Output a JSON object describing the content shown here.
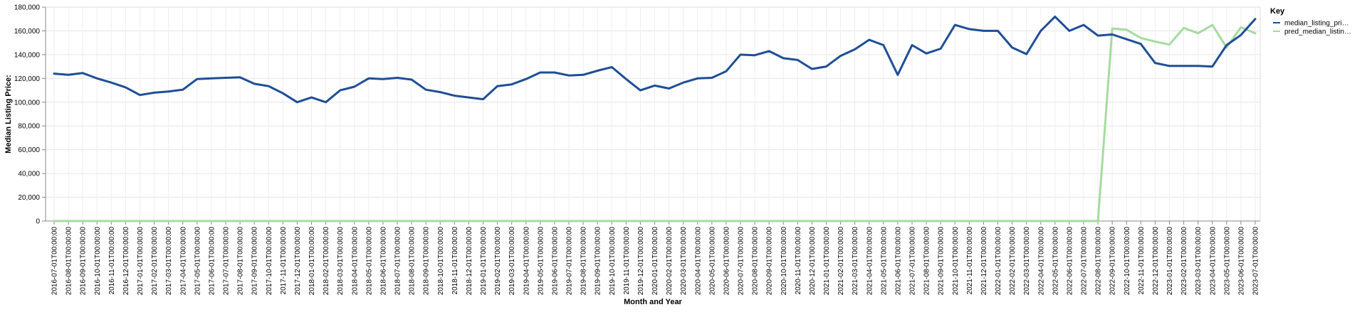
{
  "chart_data": {
    "type": "line",
    "xlabel": "Month and Year",
    "ylabel": "Median Listing Price:",
    "ylim": [
      0,
      180000
    ],
    "yticks": [
      "0",
      "20,000",
      "40,000",
      "60,000",
      "80,000",
      "100,000",
      "120,000",
      "140,000",
      "160,000",
      "180,000"
    ],
    "ytick_values": [
      0,
      20000,
      40000,
      60000,
      80000,
      100000,
      120000,
      140000,
      160000,
      180000
    ],
    "grid": true,
    "legend_position": "right",
    "legend_title": "Key",
    "x": [
      "2016-07-01T00:00:00",
      "2016-08-01T00:00:00",
      "2016-09-01T00:00:00",
      "2016-10-01T00:00:00",
      "2016-11-01T00:00:00",
      "2016-12-01T00:00:00",
      "2017-01-01T00:00:00",
      "2017-02-01T00:00:00",
      "2017-03-01T00:00:00",
      "2017-04-01T00:00:00",
      "2017-05-01T00:00:00",
      "2017-06-01T00:00:00",
      "2017-07-01T00:00:00",
      "2017-08-01T00:00:00",
      "2017-09-01T00:00:00",
      "2017-10-01T00:00:00",
      "2017-11-01T00:00:00",
      "2017-12-01T00:00:00",
      "2018-01-01T00:00:00",
      "2018-02-01T00:00:00",
      "2018-03-01T00:00:00",
      "2018-04-01T00:00:00",
      "2018-05-01T00:00:00",
      "2018-06-01T00:00:00",
      "2018-07-01T00:00:00",
      "2018-08-01T00:00:00",
      "2018-09-01T00:00:00",
      "2018-10-01T00:00:00",
      "2018-11-01T00:00:00",
      "2018-12-01T00:00:00",
      "2019-01-01T00:00:00",
      "2019-02-01T00:00:00",
      "2019-03-01T00:00:00",
      "2019-04-01T00:00:00",
      "2019-05-01T00:00:00",
      "2019-06-01T00:00:00",
      "2019-07-01T00:00:00",
      "2019-08-01T00:00:00",
      "2019-09-01T00:00:00",
      "2019-10-01T00:00:00",
      "2019-11-01T00:00:00",
      "2019-12-01T00:00:00",
      "2020-01-01T00:00:00",
      "2020-02-01T00:00:00",
      "2020-03-01T00:00:00",
      "2020-04-01T00:00:00",
      "2020-05-01T00:00:00",
      "2020-06-01T00:00:00",
      "2020-07-01T00:00:00",
      "2020-08-01T00:00:00",
      "2020-09-01T00:00:00",
      "2020-10-01T00:00:00",
      "2020-11-01T00:00:00",
      "2020-12-01T00:00:00",
      "2021-01-01T00:00:00",
      "2021-02-01T00:00:00",
      "2021-03-01T00:00:00",
      "2021-04-01T00:00:00",
      "2021-05-01T00:00:00",
      "2021-06-01T00:00:00",
      "2021-07-01T00:00:00",
      "2021-08-01T00:00:00",
      "2021-09-01T00:00:00",
      "2021-10-01T00:00:00",
      "2021-11-01T00:00:00",
      "2021-12-01T00:00:00",
      "2022-01-01T00:00:00",
      "2022-02-01T00:00:00",
      "2022-03-01T00:00:00",
      "2022-04-01T00:00:00",
      "2022-05-01T00:00:00",
      "2022-06-01T00:00:00",
      "2022-07-01T00:00:00",
      "2022-08-01T00:00:00",
      "2022-09-01T00:00:00",
      "2022-10-01T00:00:00",
      "2022-11-01T00:00:00",
      "2022-12-01T00:00:00",
      "2023-01-01T00:00:00",
      "2023-02-01T00:00:00",
      "2023-03-01T00:00:00",
      "2023-04-01T00:00:00",
      "2023-05-01T00:00:00",
      "2023-06-01T00:00:00",
      "2023-07-01T00:00:00"
    ],
    "series": [
      {
        "name": "median_listing_price",
        "legend_label": "median_listing_pri…",
        "color": "#1f4e96",
        "values": [
          124000,
          123000,
          124500,
          120000,
          116500,
          112500,
          106000,
          108000,
          109000,
          110500,
          119500,
          120000,
          120500,
          121000,
          115500,
          113500,
          107500,
          100000,
          104000,
          100000,
          110000,
          113000,
          120000,
          119500,
          120500,
          119000,
          110500,
          108500,
          105500,
          104000,
          102500,
          113500,
          115000,
          119500,
          125000,
          125000,
          122500,
          123000,
          126500,
          129500,
          119500,
          110000,
          114000,
          111500,
          116500,
          120000,
          120500,
          126000,
          140000,
          139500,
          143000,
          137000,
          135500,
          128000,
          130000,
          139000,
          144500,
          152500,
          148000,
          123000,
          148000,
          141000,
          145000,
          165000,
          161500,
          160000,
          160000,
          146000,
          140500,
          160000,
          172000,
          160000,
          165000,
          156000,
          157000,
          153000,
          149000,
          133000,
          130500,
          130500,
          130500,
          130000,
          148000,
          156500,
          170000
        ]
      },
      {
        "name": "pred_median_listing_price",
        "legend_label": "pred_median_listin…",
        "color": "#a6dba0",
        "values": [
          0,
          0,
          0,
          0,
          0,
          0,
          0,
          0,
          0,
          0,
          0,
          0,
          0,
          0,
          0,
          0,
          0,
          0,
          0,
          0,
          0,
          0,
          0,
          0,
          0,
          0,
          0,
          0,
          0,
          0,
          0,
          0,
          0,
          0,
          0,
          0,
          0,
          0,
          0,
          0,
          0,
          0,
          0,
          0,
          0,
          0,
          0,
          0,
          0,
          0,
          0,
          0,
          0,
          0,
          0,
          0,
          0,
          0,
          0,
          0,
          0,
          0,
          0,
          0,
          0,
          0,
          0,
          0,
          0,
          0,
          0,
          0,
          0,
          0,
          162000,
          161000,
          154000,
          151000,
          148500,
          162500,
          158000,
          165000,
          146000,
          163000,
          158000
        ]
      }
    ]
  }
}
